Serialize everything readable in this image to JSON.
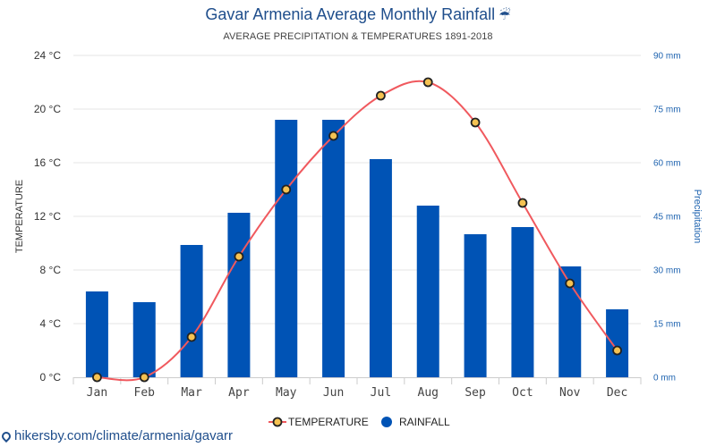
{
  "header": {
    "title": "Gavar Armenia Average Monthly Rainfall",
    "title_icon": "umbrella-rain-icon",
    "subtitle": "AVERAGE PRECIPITATION & TEMPERATURES 1891-2018"
  },
  "footer": {
    "icon": "map-pin-icon",
    "link_text": "hikersby.com/climate/armenia/gavarr"
  },
  "colors": {
    "bar": "#0053b5",
    "line": "#f0595e",
    "marker_fill": "#f5c252",
    "marker_stroke": "#222222",
    "right_axis": "#1f64b0",
    "left_axis": "#333333",
    "grid": "#e6e6e6"
  },
  "chart_data": {
    "type": "bar",
    "categories": [
      "Jan",
      "Feb",
      "Mar",
      "Apr",
      "May",
      "Jun",
      "Jul",
      "Aug",
      "Sep",
      "Oct",
      "Nov",
      "Dec"
    ],
    "series": [
      {
        "name": "TEMPERATURE",
        "type": "line",
        "axis": "left",
        "unit": "°C",
        "values": [
          0,
          0,
          3,
          9,
          14,
          18,
          21,
          22,
          19,
          13,
          7,
          2
        ]
      },
      {
        "name": "RAINFALL",
        "type": "bar",
        "axis": "right",
        "unit": "mm",
        "values": [
          24,
          21,
          37,
          46,
          72,
          72,
          61,
          48,
          40,
          42,
          31,
          19
        ]
      }
    ],
    "y_left": {
      "label": "TEMPERATURE",
      "range": [
        0,
        24
      ],
      "ticks": [
        "0 °C",
        "4 °C",
        "8 °C",
        "12 °C",
        "16 °C",
        "20 °C",
        "24 °C"
      ]
    },
    "y_right": {
      "label": "Precipitation",
      "range": [
        0,
        90
      ],
      "ticks": [
        "0 mm",
        "15 mm",
        "30 mm",
        "45 mm",
        "60 mm",
        "75 mm",
        "90 mm"
      ]
    },
    "grid": true,
    "legend_position": "bottom-center"
  }
}
